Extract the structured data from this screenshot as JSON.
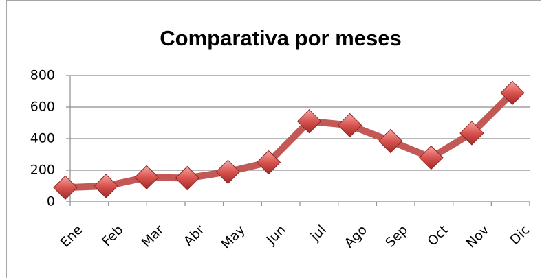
{
  "chart_data": {
    "type": "line",
    "title": "Comparativa por meses",
    "categories": [
      "Ene",
      "Feb",
      "Mar",
      "Abr",
      "May",
      "Jun",
      "jul",
      "Ago",
      "Sep",
      "Oct",
      "Nov",
      "Dic"
    ],
    "series": [
      {
        "name": "Comparativa por meses",
        "color": "#c0504d",
        "values": [
          90,
          100,
          155,
          150,
          190,
          250,
          510,
          485,
          385,
          280,
          435,
          690
        ]
      }
    ],
    "ylim": [
      0,
      800
    ],
    "yticks": [
      0,
      200,
      400,
      600,
      800
    ],
    "grid": true
  }
}
